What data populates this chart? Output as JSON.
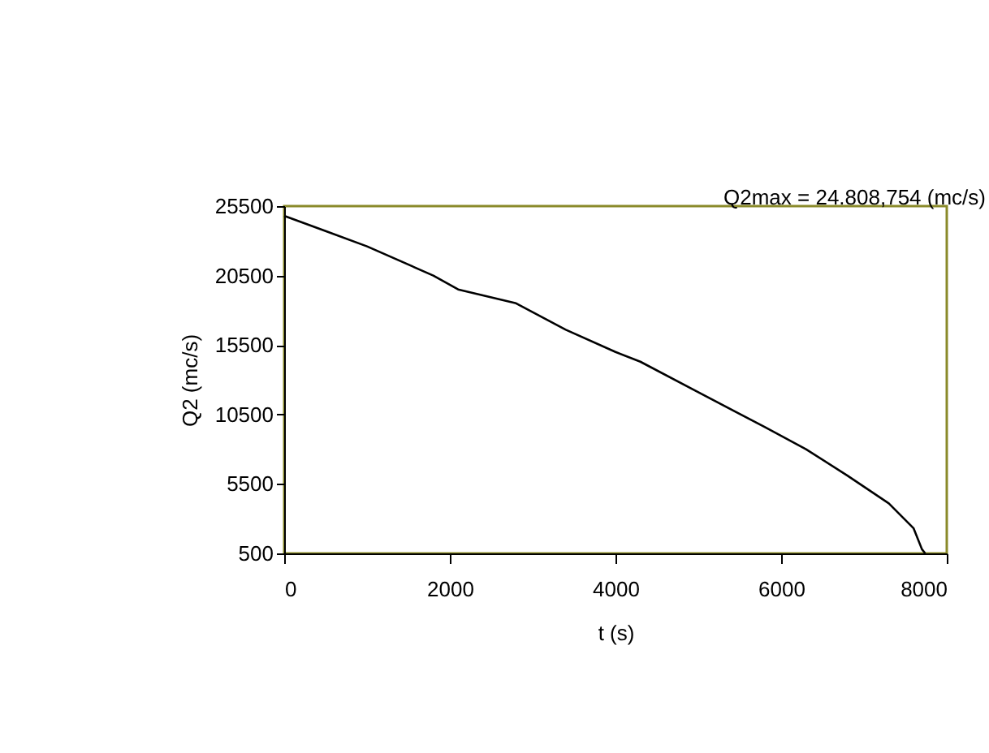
{
  "chart_data": {
    "type": "line",
    "xlabel": "t (s)",
    "ylabel": "Q2 (mc/s)",
    "annotations": [
      "Q2max = 24.808,754 (mc/s)"
    ],
    "x": [
      0,
      500,
      1000,
      1800,
      2100,
      2800,
      3400,
      4000,
      4300,
      5000,
      5800,
      6300,
      6800,
      7300,
      7600,
      7700,
      7740
    ],
    "series": [
      {
        "color": "#000000",
        "values": [
          24800,
          23700,
          22600,
          20500,
          19500,
          18500,
          16600,
          15000,
          14300,
          12100,
          9600,
          8000,
          6100,
          4100,
          2300,
          800,
          500
        ]
      }
    ],
    "xlim": [
      0,
      8000
    ],
    "xticks": [
      0,
      2000,
      4000,
      6000,
      8000
    ],
    "ylim": [
      500,
      25500
    ],
    "yticks": [
      500,
      5500,
      10500,
      15500,
      20500,
      25500
    ],
    "grid": false,
    "legend": false
  }
}
